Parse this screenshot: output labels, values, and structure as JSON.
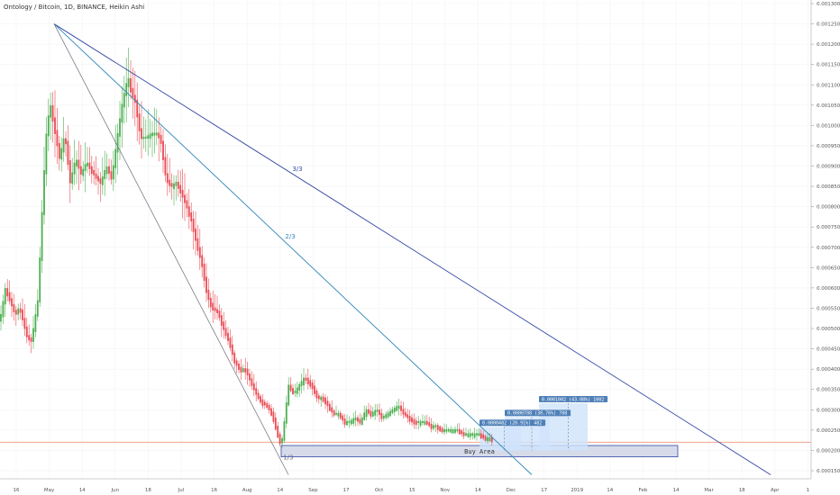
{
  "title": "Ontology / Bitcoin, 1D, BINANCE, Heikin Ashi",
  "colors": {
    "up": "#4caf50",
    "down": "#e84b53",
    "fan_outer": "#3346a5",
    "fan_mid": "#2e86b8",
    "fan_inner": "#6b6b7a",
    "price_line": "#f0a58a",
    "buy_fill": "#cfd5e6",
    "buy_stroke": "#3346a5",
    "target_fill": "#cfe3fb",
    "label_bg": "#4f80b8"
  },
  "chart_data": {
    "type": "candlestick",
    "style": "Heikin Ashi",
    "ylim": [
      0.00013,
      0.0013
    ],
    "y_ticks": [
      "0.0013000",
      "0.0012500",
      "0.0012000",
      "0.0011500",
      "0.0011000",
      "0.0010500",
      "0.0010000",
      "0.0009500",
      "0.0009000",
      "0.0008500",
      "0.0008000",
      "0.0007500",
      "0.0007000",
      "0.0006500",
      "0.0006000",
      "0.0005500",
      "0.0005000",
      "0.0004500",
      "0.0004000",
      "0.0003500",
      "0.0003000",
      "0.0002500",
      "0.0002000",
      "0.0001500"
    ],
    "x_ticks": [
      "16",
      "May",
      "14",
      "Jun",
      "18",
      "Jul",
      "16",
      "Aug",
      "14",
      "Sep",
      "17",
      "Oct",
      "15",
      "Nov",
      "14",
      "Dec",
      "17",
      "2019",
      "14",
      "Feb",
      "14",
      "Mar",
      "18",
      "Apr",
      "1"
    ],
    "path": [
      [
        0,
        0.00052
      ],
      [
        6,
        0.0006
      ],
      [
        16,
        0.00054
      ],
      [
        22,
        0.00055
      ],
      [
        30,
        0.00048
      ],
      [
        35,
        0.00047
      ],
      [
        42,
        0.00057
      ],
      [
        48,
        0.00085
      ],
      [
        52,
        0.001
      ],
      [
        56,
        0.00105
      ],
      [
        60,
        0.001
      ],
      [
        66,
        0.00092
      ],
      [
        72,
        0.00098
      ],
      [
        78,
        0.00086
      ],
      [
        84,
        0.00092
      ],
      [
        90,
        0.00088
      ],
      [
        96,
        0.00091
      ],
      [
        104,
        0.00088
      ],
      [
        112,
        0.00086
      ],
      [
        118,
        0.0009
      ],
      [
        124,
        0.00087
      ],
      [
        130,
        0.00097
      ],
      [
        136,
        0.00106
      ],
      [
        142,
        0.00112
      ],
      [
        146,
        0.00108
      ],
      [
        150,
        0.00106
      ],
      [
        156,
        0.00097
      ],
      [
        162,
        0.00097
      ],
      [
        168,
        0.00098
      ],
      [
        174,
        0.00098
      ],
      [
        178,
        0.00097
      ],
      [
        184,
        0.00087
      ],
      [
        190,
        0.00085
      ],
      [
        196,
        0.00086
      ],
      [
        204,
        0.00082
      ],
      [
        212,
        0.00077
      ],
      [
        218,
        0.00071
      ],
      [
        224,
        0.00066
      ],
      [
        230,
        0.00058
      ],
      [
        236,
        0.00055
      ],
      [
        242,
        0.00054
      ],
      [
        248,
        0.0005
      ],
      [
        254,
        0.00047
      ],
      [
        260,
        0.00042
      ],
      [
        266,
        0.0004
      ],
      [
        272,
        0.0004
      ],
      [
        278,
        0.00037
      ],
      [
        284,
        0.00034
      ],
      [
        290,
        0.00032
      ],
      [
        296,
        0.00031
      ],
      [
        302,
        0.00029
      ],
      [
        308,
        0.00024
      ],
      [
        312,
        0.00021
      ],
      [
        316,
        0.00028
      ],
      [
        320,
        0.00036
      ],
      [
        326,
        0.00034
      ],
      [
        332,
        0.00036
      ],
      [
        338,
        0.00038
      ],
      [
        342,
        0.00037
      ],
      [
        346,
        0.00036
      ],
      [
        352,
        0.00033
      ],
      [
        358,
        0.00033
      ],
      [
        364,
        0.00031
      ],
      [
        370,
        0.00029
      ],
      [
        376,
        0.00029
      ],
      [
        382,
        0.00027
      ],
      [
        388,
        0.00027
      ],
      [
        394,
        0.00028
      ],
      [
        400,
        0.00027
      ],
      [
        406,
        0.0003
      ],
      [
        412,
        0.00029
      ],
      [
        418,
        0.0003
      ],
      [
        424,
        0.00028
      ],
      [
        430,
        0.00029
      ],
      [
        436,
        0.0003
      ],
      [
        442,
        0.00031
      ],
      [
        448,
        0.00029
      ],
      [
        454,
        0.00028
      ],
      [
        460,
        0.00027
      ],
      [
        466,
        0.00027
      ],
      [
        472,
        0.00027
      ],
      [
        478,
        0.00026
      ],
      [
        484,
        0.00026
      ],
      [
        490,
        0.00025
      ],
      [
        496,
        0.00025
      ],
      [
        502,
        0.00025
      ],
      [
        508,
        0.00025
      ],
      [
        514,
        0.00024
      ],
      [
        520,
        0.00024
      ],
      [
        526,
        0.00024
      ],
      [
        532,
        0.00024
      ],
      [
        538,
        0.00023
      ],
      [
        544,
        0.00023
      ],
      [
        548,
        0.00022
      ]
    ],
    "fan_lines": [
      {
        "label": "3/3",
        "from": [
          60,
          0.00125
        ],
        "to": [
          855,
          0.00014
        ]
      },
      {
        "label": "2/3",
        "from": [
          60,
          0.00125
        ],
        "to": [
          590,
          0.00014
        ]
      },
      {
        "label": "1/3",
        "from": [
          60,
          0.00125
        ],
        "to": [
          320,
          0.00014
        ]
      }
    ],
    "current_price": 0.00022,
    "buy_area": {
      "label": "Buy Area",
      "x0": 312,
      "x1": 752,
      "y_top": 0.000212,
      "y_bottom": 0.000184
    },
    "targets": [
      {
        "label": "0.0000482 (20.91%) 482",
        "x0": 532,
        "x1": 578,
        "y_top": 0.000258,
        "y_bottom": 0.0002
      },
      {
        "label": "0.0000708 (30.76%) 708",
        "x0": 560,
        "x1": 610,
        "y_top": 0.000282,
        "y_bottom": 0.0002
      },
      {
        "label": "0.0001002 (43.08%) 1002",
        "x0": 598,
        "x1": 652,
        "y_top": 0.000316,
        "y_bottom": 0.0002
      }
    ]
  }
}
